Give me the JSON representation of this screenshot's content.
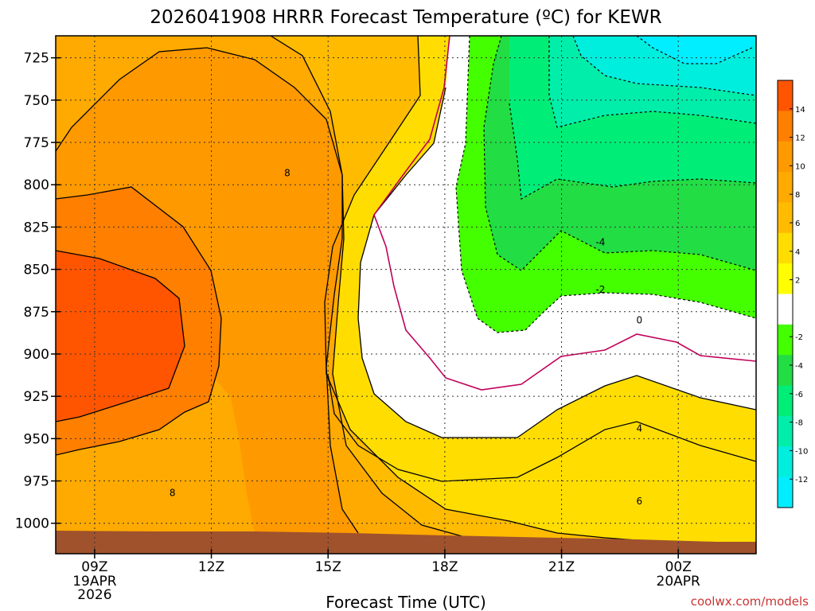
{
  "title": "2026041908 HRRR Forecast Temperature (ºC) for KEWR",
  "xlabel": "Forecast Time (UTC)",
  "credit": "coolwx.com/models",
  "chart_data": {
    "type": "contour",
    "title": "2026041908 HRRR Forecast Temperature (ºC) for KEWR",
    "xlabel": "Forecast Time (UTC)",
    "ylabel": "",
    "x_ticks": [
      {
        "hour": 9,
        "label": "09Z",
        "sub": [
          "19APR",
          "2026"
        ]
      },
      {
        "hour": 12,
        "label": "12Z",
        "sub": []
      },
      {
        "hour": 15,
        "label": "15Z",
        "sub": []
      },
      {
        "hour": 18,
        "label": "18Z",
        "sub": []
      },
      {
        "hour": 21,
        "label": "21Z",
        "sub": []
      },
      {
        "hour": 24,
        "label": "00Z",
        "sub": [
          "20APR"
        ]
      }
    ],
    "xlim": [
      8,
      26
    ],
    "y_ticks": [
      725,
      750,
      775,
      800,
      825,
      850,
      875,
      900,
      925,
      950,
      975,
      1000
    ],
    "ylim": [
      1018,
      712
    ],
    "y_axis": "pressure (hPa), inverted",
    "grid": true,
    "contour_levels": [
      -12,
      -10,
      -8,
      -6,
      -4,
      -2,
      0,
      2,
      4,
      6,
      8,
      10,
      12,
      14
    ],
    "contour_labels": [
      {
        "value": 8,
        "hour": 13.95,
        "p": 793
      },
      {
        "value": 8,
        "hour": 11.0,
        "p": 982
      },
      {
        "value": -4,
        "hour": 22.0,
        "p": 834
      },
      {
        "value": -2,
        "hour": 22.0,
        "p": 862
      },
      {
        "value": 0,
        "hour": 23.0,
        "p": 880
      },
      {
        "value": 4,
        "hour": 23.0,
        "p": 944
      },
      {
        "value": 6,
        "hour": 23.0,
        "p": 987
      }
    ],
    "colorbar": {
      "labels": [
        14,
        12,
        10,
        8,
        6,
        4,
        2,
        -2,
        -4,
        -6,
        -8,
        -10,
        -12
      ],
      "colors": [
        "#ff5500",
        "#ff7f00",
        "#ff9900",
        "#ffaa00",
        "#ffbb00",
        "#ffdd00",
        "#ffff00",
        "#ffffff",
        "#44ff00",
        "#22dd44",
        "#00ee77",
        "#00eeaa",
        "#00eedd",
        "#00eeff"
      ],
      "range": [
        -14,
        16
      ]
    },
    "ground_color": "#a0522d"
  }
}
